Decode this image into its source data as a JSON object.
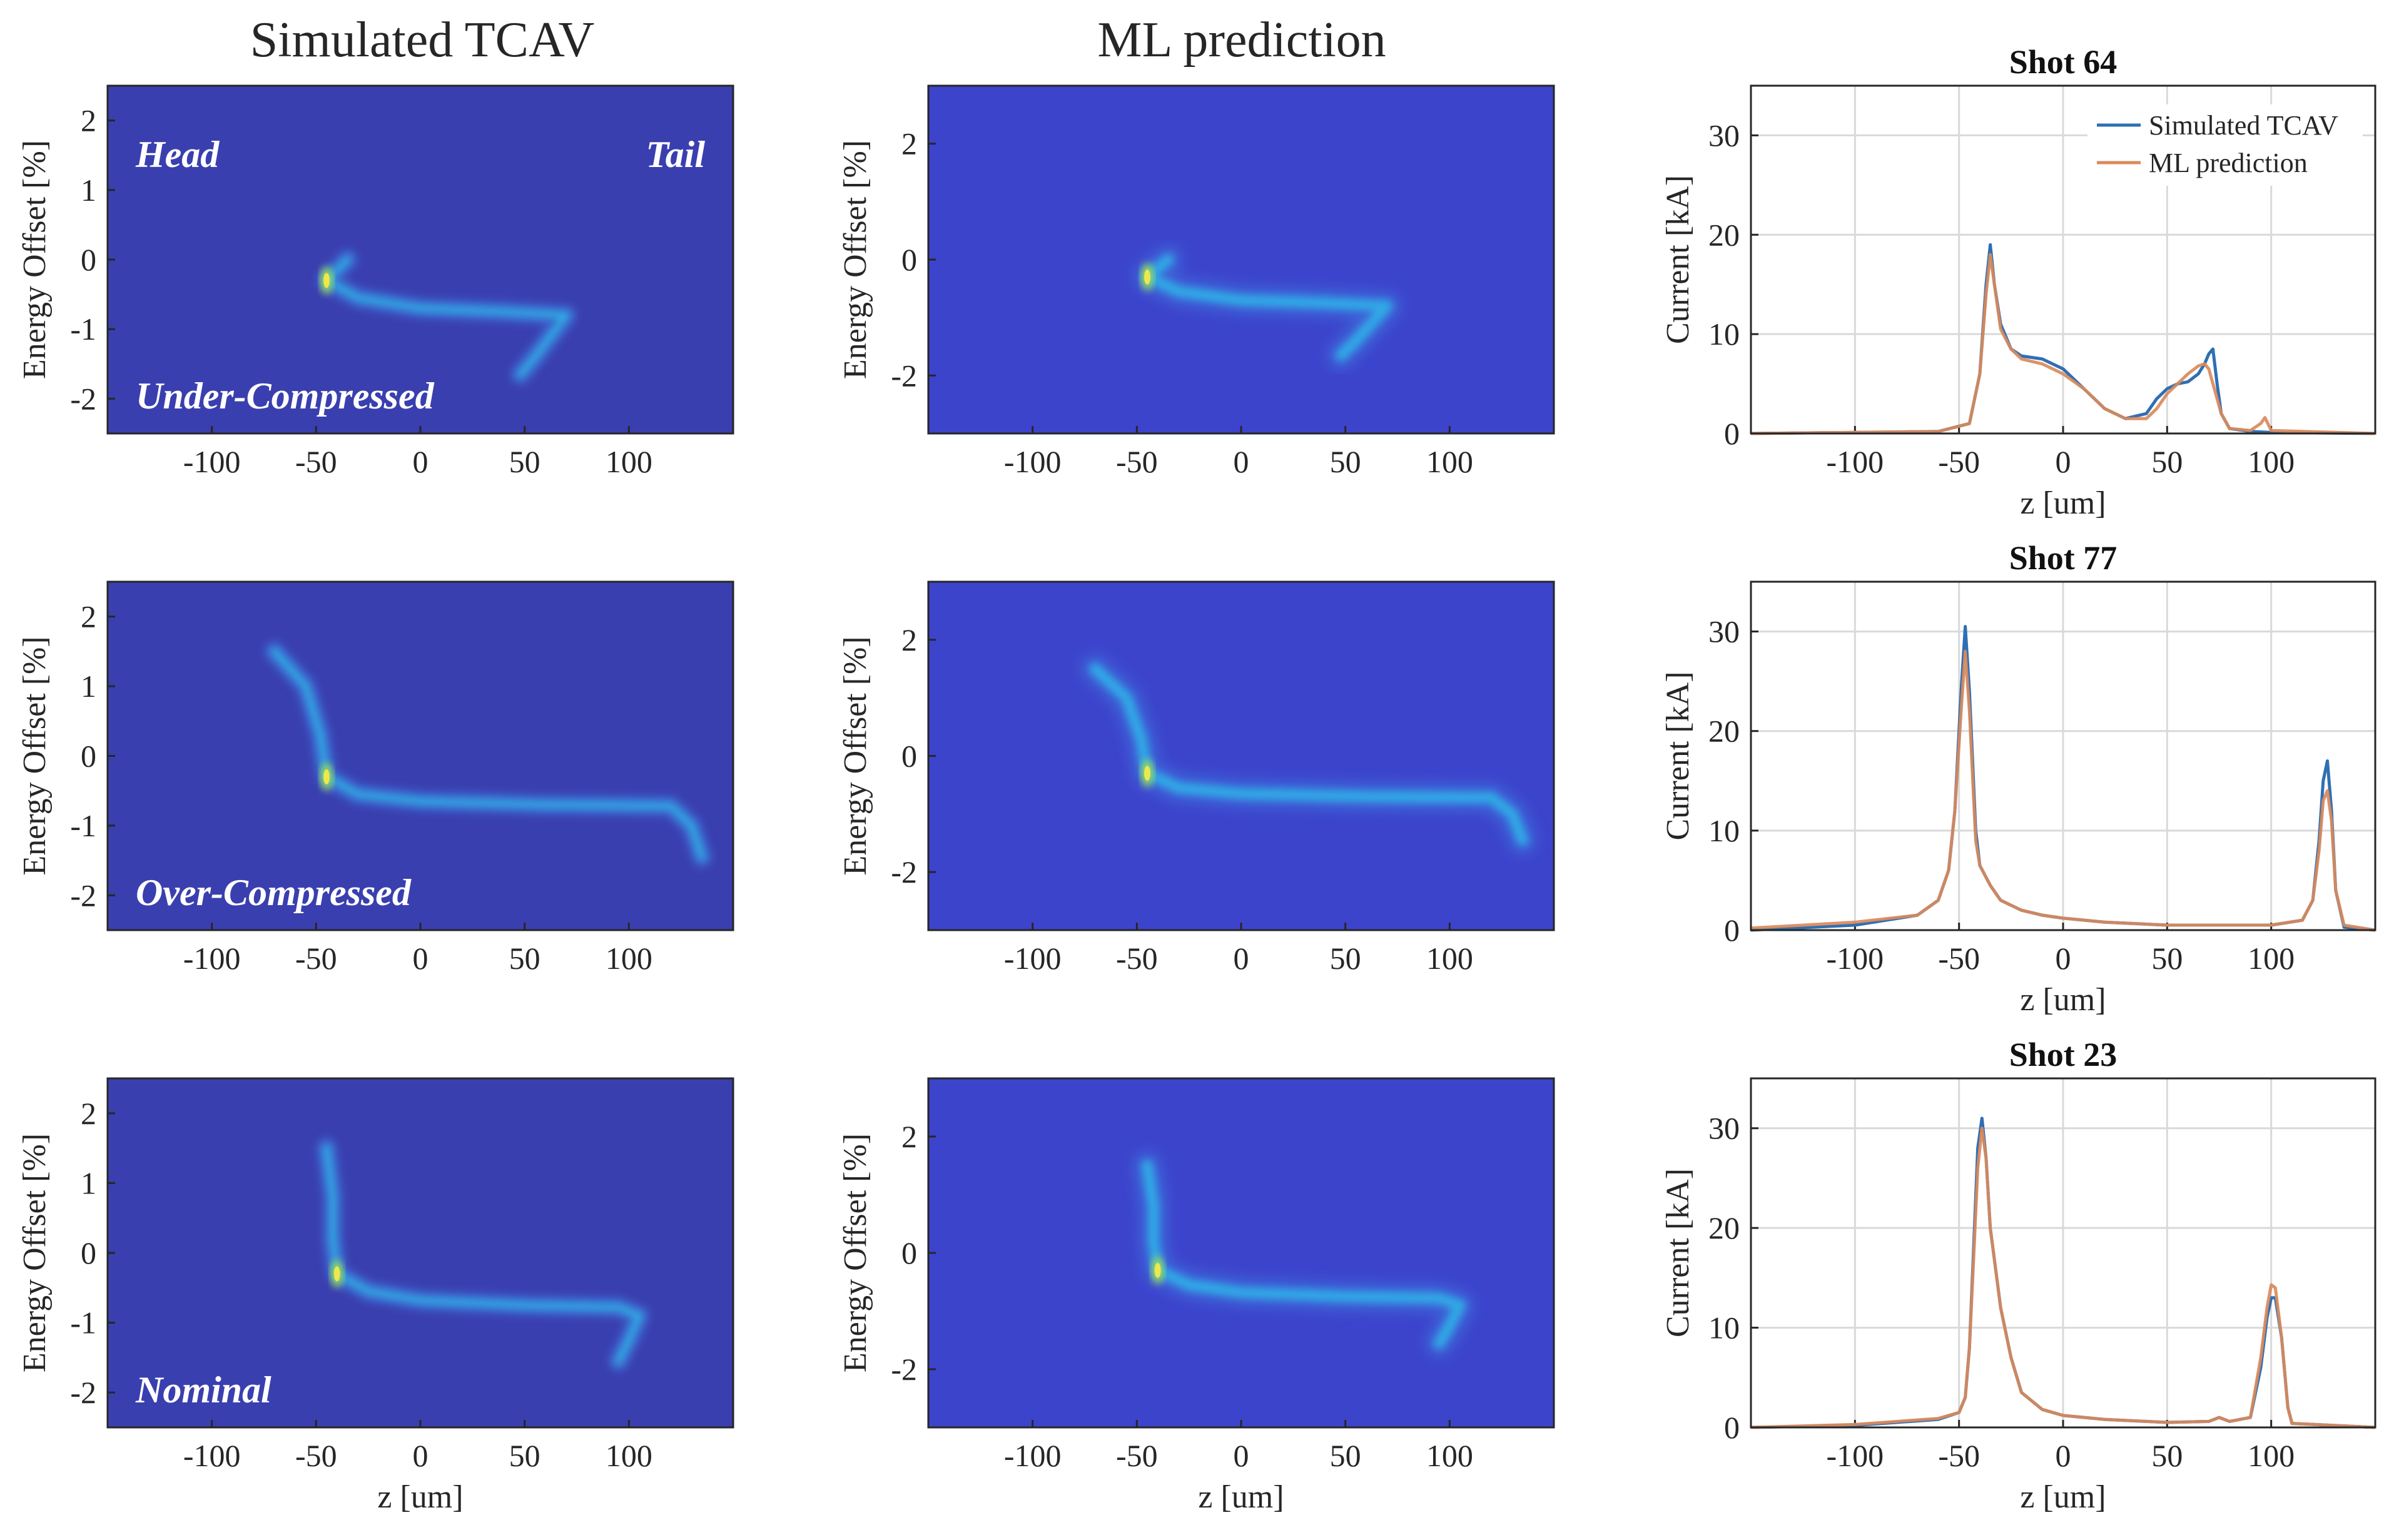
{
  "colors": {
    "image_bg": "#3a3faf",
    "image_bg_ml": "#3c44cc",
    "tcav_line": "#2f6fb3",
    "ml_line": "#d98a5c",
    "grid": "#d9d9d9",
    "axis": "#262626",
    "overlay_text": "#ffffff"
  },
  "column_titles": {
    "left": "Simulated TCAV",
    "middle": "ML prediction"
  },
  "chart_data": [
    {
      "type": "heatmap",
      "panel": "tcav-row1",
      "xlabel": "",
      "ylabel": "Energy Offset [%]",
      "xlim": [
        -150,
        150
      ],
      "ylim": [
        -2.5,
        2.5
      ],
      "xticks": [
        "-100",
        "-50",
        "0",
        "50",
        "100"
      ],
      "yticks": [
        "-2",
        "-1",
        "0",
        "1",
        "2"
      ],
      "annotations": [
        "Head",
        "Tail",
        "Under-Compressed"
      ],
      "trace": [
        [
          -35,
          0.0
        ],
        [
          -45,
          -0.3
        ],
        [
          -30,
          -0.55
        ],
        [
          0,
          -0.7
        ],
        [
          40,
          -0.75
        ],
        [
          70,
          -0.8
        ],
        [
          55,
          -1.4
        ],
        [
          48,
          -1.65
        ]
      ]
    },
    {
      "type": "heatmap",
      "panel": "ml-row1",
      "xlabel": "",
      "ylabel": "Energy Offset [%]",
      "xlim": [
        -150,
        150
      ],
      "ylim": [
        -3,
        3
      ],
      "xticks": [
        "-100",
        "-50",
        "0",
        "50",
        "100"
      ],
      "yticks": [
        "-2",
        "0",
        "2"
      ],
      "annotations": [],
      "trace": [
        [
          -35,
          0.0
        ],
        [
          -45,
          -0.3
        ],
        [
          -30,
          -0.55
        ],
        [
          0,
          -0.7
        ],
        [
          40,
          -0.75
        ],
        [
          70,
          -0.8
        ],
        [
          55,
          -1.4
        ],
        [
          48,
          -1.65
        ]
      ]
    },
    {
      "type": "line",
      "panel": "shot-64",
      "title": "Shot 64",
      "xlabel": "z [um]",
      "ylabel": "Current [kA]",
      "xlim": [
        -150,
        150
      ],
      "ylim": [
        0,
        35
      ],
      "xticks": [
        "-100",
        "-50",
        "0",
        "50",
        "100"
      ],
      "yticks": [
        "0",
        "10",
        "20",
        "30"
      ],
      "legend": [
        "Simulated TCAV",
        "ML prediction"
      ],
      "series": [
        {
          "name": "Simulated TCAV",
          "x": [
            -150,
            -60,
            -45,
            -40,
            -37,
            -35,
            -33,
            -30,
            -25,
            -20,
            -10,
            0,
            10,
            20,
            30,
            40,
            45,
            50,
            55,
            60,
            65,
            68,
            70,
            72,
            74,
            76,
            80,
            90,
            100,
            150
          ],
          "y": [
            0,
            0.2,
            1,
            6,
            15,
            19,
            15,
            11,
            8.5,
            7.8,
            7.5,
            6.5,
            4.5,
            2.5,
            1.5,
            2,
            3.5,
            4.5,
            5,
            5.2,
            6,
            7,
            8,
            8.5,
            5,
            2,
            0.5,
            0.2,
            0.1,
            0
          ]
        },
        {
          "name": "ML prediction",
          "x": [
            -150,
            -60,
            -45,
            -40,
            -37,
            -35,
            -33,
            -30,
            -25,
            -20,
            -10,
            0,
            10,
            20,
            30,
            40,
            45,
            50,
            55,
            60,
            65,
            68,
            70,
            72,
            74,
            76,
            80,
            90,
            95,
            97,
            100,
            150
          ],
          "y": [
            0,
            0.2,
            1,
            6,
            14,
            18,
            15,
            10.5,
            8.5,
            7.5,
            7,
            6,
            4.5,
            2.5,
            1.5,
            1.5,
            2.5,
            4,
            5,
            6,
            6.8,
            7,
            6.5,
            5,
            3.5,
            2,
            0.5,
            0.3,
            1,
            1.6,
            0.3,
            0
          ]
        }
      ]
    },
    {
      "type": "heatmap",
      "panel": "tcav-row2",
      "xlabel": "",
      "ylabel": "Energy Offset [%]",
      "xlim": [
        -150,
        150
      ],
      "ylim": [
        -2.5,
        2.5
      ],
      "xticks": [
        "-100",
        "-50",
        "0",
        "50",
        "100"
      ],
      "yticks": [
        "-2",
        "-1",
        "0",
        "1",
        "2"
      ],
      "annotations": [
        "Over-Compressed"
      ],
      "trace": [
        [
          -70,
          1.5
        ],
        [
          -55,
          1.0
        ],
        [
          -48,
          0.3
        ],
        [
          -45,
          -0.3
        ],
        [
          -30,
          -0.55
        ],
        [
          0,
          -0.65
        ],
        [
          60,
          -0.7
        ],
        [
          120,
          -0.72
        ],
        [
          130,
          -1.0
        ],
        [
          135,
          -1.45
        ]
      ]
    },
    {
      "type": "heatmap",
      "panel": "ml-row2",
      "xlabel": "",
      "ylabel": "Energy Offset [%]",
      "xlim": [
        -150,
        150
      ],
      "ylim": [
        -3,
        3
      ],
      "xticks": [
        "-100",
        "-50",
        "0",
        "50",
        "100"
      ],
      "yticks": [
        "-2",
        "0",
        "2"
      ],
      "annotations": [],
      "trace": [
        [
          -70,
          1.5
        ],
        [
          -55,
          1.0
        ],
        [
          -48,
          0.3
        ],
        [
          -45,
          -0.3
        ],
        [
          -30,
          -0.55
        ],
        [
          0,
          -0.65
        ],
        [
          60,
          -0.7
        ],
        [
          120,
          -0.72
        ],
        [
          130,
          -1.0
        ],
        [
          135,
          -1.45
        ]
      ]
    },
    {
      "type": "line",
      "panel": "shot-77",
      "title": "Shot 77",
      "xlabel": "z [um]",
      "ylabel": "Current [kA]",
      "xlim": [
        -150,
        150
      ],
      "ylim": [
        0,
        35
      ],
      "xticks": [
        "-100",
        "-50",
        "0",
        "50",
        "100"
      ],
      "yticks": [
        "0",
        "10",
        "20",
        "30"
      ],
      "legend": [],
      "series": [
        {
          "name": "Simulated TCAV",
          "x": [
            -150,
            -100,
            -70,
            -60,
            -55,
            -52,
            -49,
            -47,
            -45,
            -42,
            -40,
            -35,
            -30,
            -20,
            -10,
            0,
            20,
            50,
            100,
            115,
            120,
            123,
            125,
            127,
            129,
            131,
            135,
            150
          ],
          "y": [
            0,
            0.5,
            1.5,
            3,
            6,
            12,
            24,
            30.5,
            24,
            10,
            6.5,
            4.5,
            3,
            2,
            1.5,
            1.2,
            0.8,
            0.5,
            0.5,
            1,
            3,
            9,
            15,
            17,
            12,
            4,
            0.3,
            0
          ]
        },
        {
          "name": "ML prediction",
          "x": [
            -150,
            -100,
            -70,
            -60,
            -55,
            -52,
            -49,
            -47,
            -45,
            -42,
            -40,
            -35,
            -30,
            -20,
            -10,
            0,
            20,
            50,
            100,
            115,
            120,
            123,
            125,
            127,
            129,
            131,
            135,
            150
          ],
          "y": [
            0.2,
            0.8,
            1.5,
            3,
            6,
            12,
            22,
            28,
            22,
            9,
            6.5,
            4.5,
            3,
            2,
            1.5,
            1.2,
            0.8,
            0.5,
            0.5,
            1,
            3,
            8,
            13,
            14,
            11,
            4,
            0.5,
            0
          ]
        }
      ]
    },
    {
      "type": "heatmap",
      "panel": "tcav-row3",
      "xlabel": "z [um]",
      "ylabel": "Energy Offset [%]",
      "xlim": [
        -150,
        150
      ],
      "ylim": [
        -2.5,
        2.5
      ],
      "xticks": [
        "-100",
        "-50",
        "0",
        "50",
        "100"
      ],
      "yticks": [
        "-2",
        "-1",
        "0",
        "1",
        "2"
      ],
      "annotations": [
        "Nominal"
      ],
      "trace": [
        [
          -45,
          1.5
        ],
        [
          -42,
          0.8
        ],
        [
          -42,
          0.2
        ],
        [
          -40,
          -0.3
        ],
        [
          -25,
          -0.55
        ],
        [
          0,
          -0.68
        ],
        [
          50,
          -0.75
        ],
        [
          95,
          -0.78
        ],
        [
          105,
          -0.9
        ],
        [
          100,
          -1.25
        ],
        [
          95,
          -1.55
        ]
      ]
    },
    {
      "type": "heatmap",
      "panel": "ml-row3",
      "xlabel": "z [um]",
      "ylabel": "Energy Offset [%]",
      "xlim": [
        -150,
        150
      ],
      "ylim": [
        -3,
        3
      ],
      "xticks": [
        "-100",
        "-50",
        "0",
        "50",
        "100"
      ],
      "yticks": [
        "-2",
        "0",
        "2"
      ],
      "annotations": [],
      "trace": [
        [
          -45,
          1.5
        ],
        [
          -42,
          0.8
        ],
        [
          -42,
          0.2
        ],
        [
          -40,
          -0.3
        ],
        [
          -25,
          -0.55
        ],
        [
          0,
          -0.68
        ],
        [
          50,
          -0.75
        ],
        [
          95,
          -0.78
        ],
        [
          105,
          -0.9
        ],
        [
          100,
          -1.25
        ],
        [
          95,
          -1.55
        ]
      ]
    },
    {
      "type": "line",
      "panel": "shot-23",
      "title": "Shot 23",
      "xlabel": "z [um]",
      "ylabel": "Current [kA]",
      "xlim": [
        -150,
        150
      ],
      "ylim": [
        0,
        35
      ],
      "xticks": [
        "-100",
        "-50",
        "0",
        "50",
        "100"
      ],
      "yticks": [
        "0",
        "10",
        "20",
        "30"
      ],
      "legend": [],
      "series": [
        {
          "name": "Simulated TCAV",
          "x": [
            -150,
            -100,
            -60,
            -50,
            -47,
            -45,
            -43,
            -41,
            -39,
            -37,
            -35,
            -30,
            -25,
            -20,
            -10,
            0,
            20,
            50,
            70,
            75,
            80,
            90,
            95,
            98,
            100,
            102,
            105,
            108,
            110,
            150
          ],
          "y": [
            0,
            0.2,
            0.8,
            1.5,
            3,
            8,
            18,
            28,
            31,
            27,
            20,
            12,
            7,
            3.5,
            1.8,
            1.2,
            0.8,
            0.5,
            0.6,
            1,
            0.6,
            1,
            6,
            11,
            13,
            13,
            9,
            2,
            0.4,
            0
          ]
        },
        {
          "name": "ML prediction",
          "x": [
            -150,
            -100,
            -60,
            -50,
            -47,
            -45,
            -43,
            -41,
            -39,
            -37,
            -35,
            -30,
            -25,
            -20,
            -10,
            0,
            20,
            50,
            70,
            75,
            80,
            90,
            95,
            98,
            100,
            102,
            105,
            108,
            110,
            150
          ],
          "y": [
            0,
            0.3,
            0.9,
            1.5,
            3,
            8,
            17,
            26,
            30,
            27,
            20,
            12,
            7,
            3.5,
            1.8,
            1.2,
            0.8,
            0.5,
            0.6,
            1,
            0.6,
            1,
            7,
            12,
            14.3,
            14,
            9,
            2,
            0.4,
            0
          ]
        }
      ]
    }
  ]
}
